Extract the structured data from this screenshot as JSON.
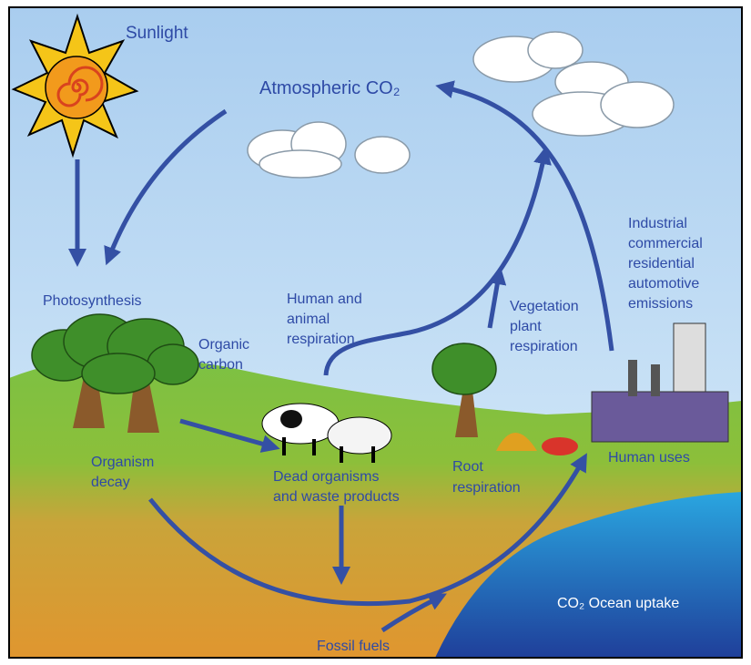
{
  "labels": {
    "sunlight": [
      "Sunlight"
    ],
    "atmospheric": [
      "Atmospheric CO₂"
    ],
    "photosynthesis": [
      "Photosynthesis"
    ],
    "organic_carbon": [
      "Organic",
      "carbon"
    ],
    "human_animal": [
      "Human and",
      "animal",
      "respiration"
    ],
    "vegetation": [
      "Vegetation",
      "plant",
      "respiration"
    ],
    "industrial": [
      "Industrial",
      "commercial",
      "residential",
      "automotive",
      "emissions"
    ],
    "organism_decay": [
      "Organism",
      "decay"
    ],
    "dead_organisms": [
      "Dead organisms",
      "and waste products"
    ],
    "root": [
      "Root",
      "respiration"
    ],
    "human_uses": [
      "Human uses"
    ],
    "ocean": [
      "CO₂ Ocean uptake"
    ],
    "fossil": [
      "Fossil fuels"
    ]
  }
}
